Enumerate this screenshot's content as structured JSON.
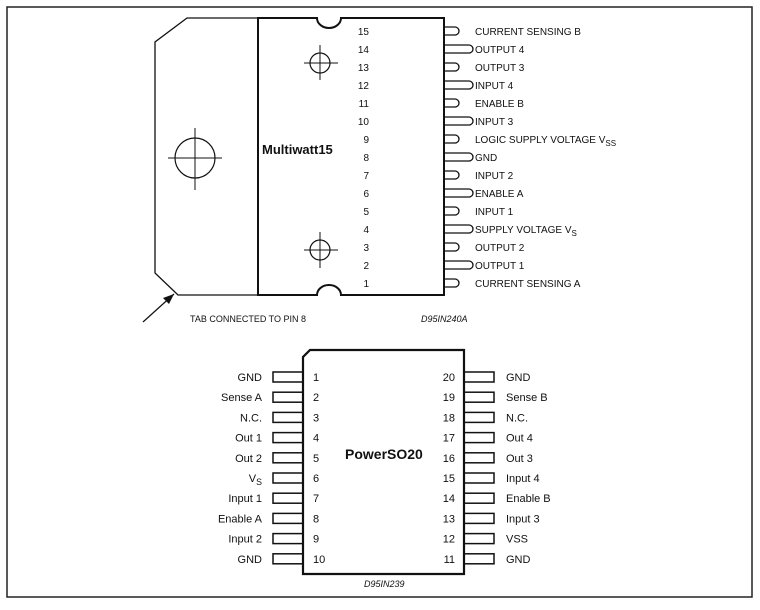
{
  "multiwatt": {
    "package_name": "Multiwatt15",
    "pins": [
      {
        "num": "15",
        "label": "CURRENT SENSING B",
        "sub": ""
      },
      {
        "num": "14",
        "label": "OUTPUT 4",
        "sub": ""
      },
      {
        "num": "13",
        "label": "OUTPUT 3",
        "sub": ""
      },
      {
        "num": "12",
        "label": "INPUT 4",
        "sub": ""
      },
      {
        "num": "11",
        "label": "ENABLE B",
        "sub": ""
      },
      {
        "num": "10",
        "label": "INPUT 3",
        "sub": ""
      },
      {
        "num": "9",
        "label": "LOGIC SUPPLY VOLTAGE V",
        "sub": "SS"
      },
      {
        "num": "8",
        "label": "GND",
        "sub": ""
      },
      {
        "num": "7",
        "label": "INPUT 2",
        "sub": ""
      },
      {
        "num": "6",
        "label": "ENABLE A",
        "sub": ""
      },
      {
        "num": "5",
        "label": "INPUT 1",
        "sub": ""
      },
      {
        "num": "4",
        "label": "SUPPLY VOLTAGE V",
        "sub": "S"
      },
      {
        "num": "3",
        "label": "OUTPUT 2",
        "sub": ""
      },
      {
        "num": "2",
        "label": "OUTPUT 1",
        "sub": ""
      },
      {
        "num": "1",
        "label": "CURRENT SENSING A",
        "sub": ""
      }
    ],
    "tab_note": "TAB CONNECTED TO PIN 8",
    "drawing_code": "D95IN240A"
  },
  "powerso": {
    "package_name": "PowerSO20",
    "left_pins": [
      {
        "num": "1",
        "label": "GND",
        "sub": ""
      },
      {
        "num": "2",
        "label": "Sense A",
        "sub": ""
      },
      {
        "num": "3",
        "label": "N.C.",
        "sub": ""
      },
      {
        "num": "4",
        "label": "Out 1",
        "sub": ""
      },
      {
        "num": "5",
        "label": "Out 2",
        "sub": ""
      },
      {
        "num": "6",
        "label": "V",
        "sub": "S"
      },
      {
        "num": "7",
        "label": "Input 1",
        "sub": ""
      },
      {
        "num": "8",
        "label": "Enable A",
        "sub": ""
      },
      {
        "num": "9",
        "label": "Input 2",
        "sub": ""
      },
      {
        "num": "10",
        "label": "GND",
        "sub": ""
      }
    ],
    "right_pins": [
      {
        "num": "20",
        "label": "GND",
        "sub": ""
      },
      {
        "num": "19",
        "label": "Sense B",
        "sub": ""
      },
      {
        "num": "18",
        "label": "N.C.",
        "sub": ""
      },
      {
        "num": "17",
        "label": "Out 4",
        "sub": ""
      },
      {
        "num": "16",
        "label": "Out 3",
        "sub": ""
      },
      {
        "num": "15",
        "label": "Input 4",
        "sub": ""
      },
      {
        "num": "14",
        "label": "Enable B",
        "sub": ""
      },
      {
        "num": "13",
        "label": "Input 3",
        "sub": ""
      },
      {
        "num": "12",
        "label": "VSS",
        "sub": ""
      },
      {
        "num": "11",
        "label": "GND",
        "sub": ""
      }
    ],
    "drawing_code": "D95IN239"
  }
}
